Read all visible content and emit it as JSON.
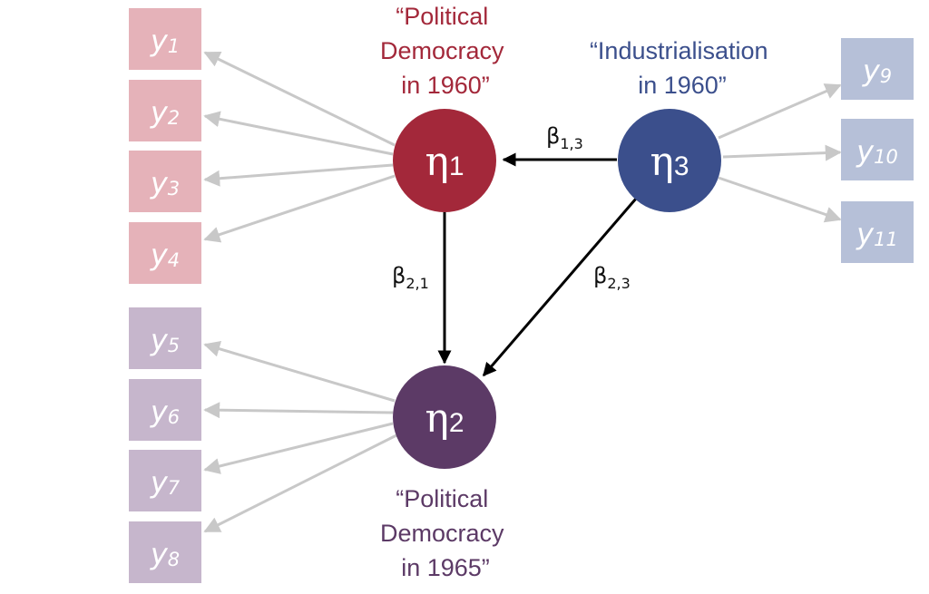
{
  "colors": {
    "eta1": "#a3283a",
    "eta2": "#5c3a66",
    "eta3": "#3b4f8c",
    "ind_eta1": "#e5b2b9",
    "ind_eta2": "#c6b6cc",
    "ind_eta3": "#b6c0d8",
    "loading_arrow": "#c8c8c8",
    "path_arrow": "#000000"
  },
  "latents": {
    "eta1": {
      "symbol": "η",
      "sub": "1",
      "label": [
        "“Political",
        "Democracy",
        "in 1960”"
      ]
    },
    "eta2": {
      "symbol": "η",
      "sub": "2",
      "label": [
        "“Political",
        "Democracy",
        "in 1965”"
      ]
    },
    "eta3": {
      "symbol": "η",
      "sub": "3",
      "label": [
        "“Industrialisation",
        "in 1960”"
      ]
    }
  },
  "indicators": {
    "eta1": [
      {
        "base": "y",
        "sub": "1"
      },
      {
        "base": "y",
        "sub": "2"
      },
      {
        "base": "y",
        "sub": "3"
      },
      {
        "base": "y",
        "sub": "4"
      }
    ],
    "eta2": [
      {
        "base": "y",
        "sub": "5"
      },
      {
        "base": "y",
        "sub": "6"
      },
      {
        "base": "y",
        "sub": "7"
      },
      {
        "base": "y",
        "sub": "8"
      }
    ],
    "eta3": [
      {
        "base": "y",
        "sub": "9"
      },
      {
        "base": "y",
        "sub": "10"
      },
      {
        "base": "y",
        "sub": "11"
      }
    ]
  },
  "paths": {
    "b13": {
      "symbol": "β",
      "sub": "1,3"
    },
    "b21": {
      "symbol": "β",
      "sub": "2,1"
    },
    "b23": {
      "symbol": "β",
      "sub": "2,3"
    }
  }
}
